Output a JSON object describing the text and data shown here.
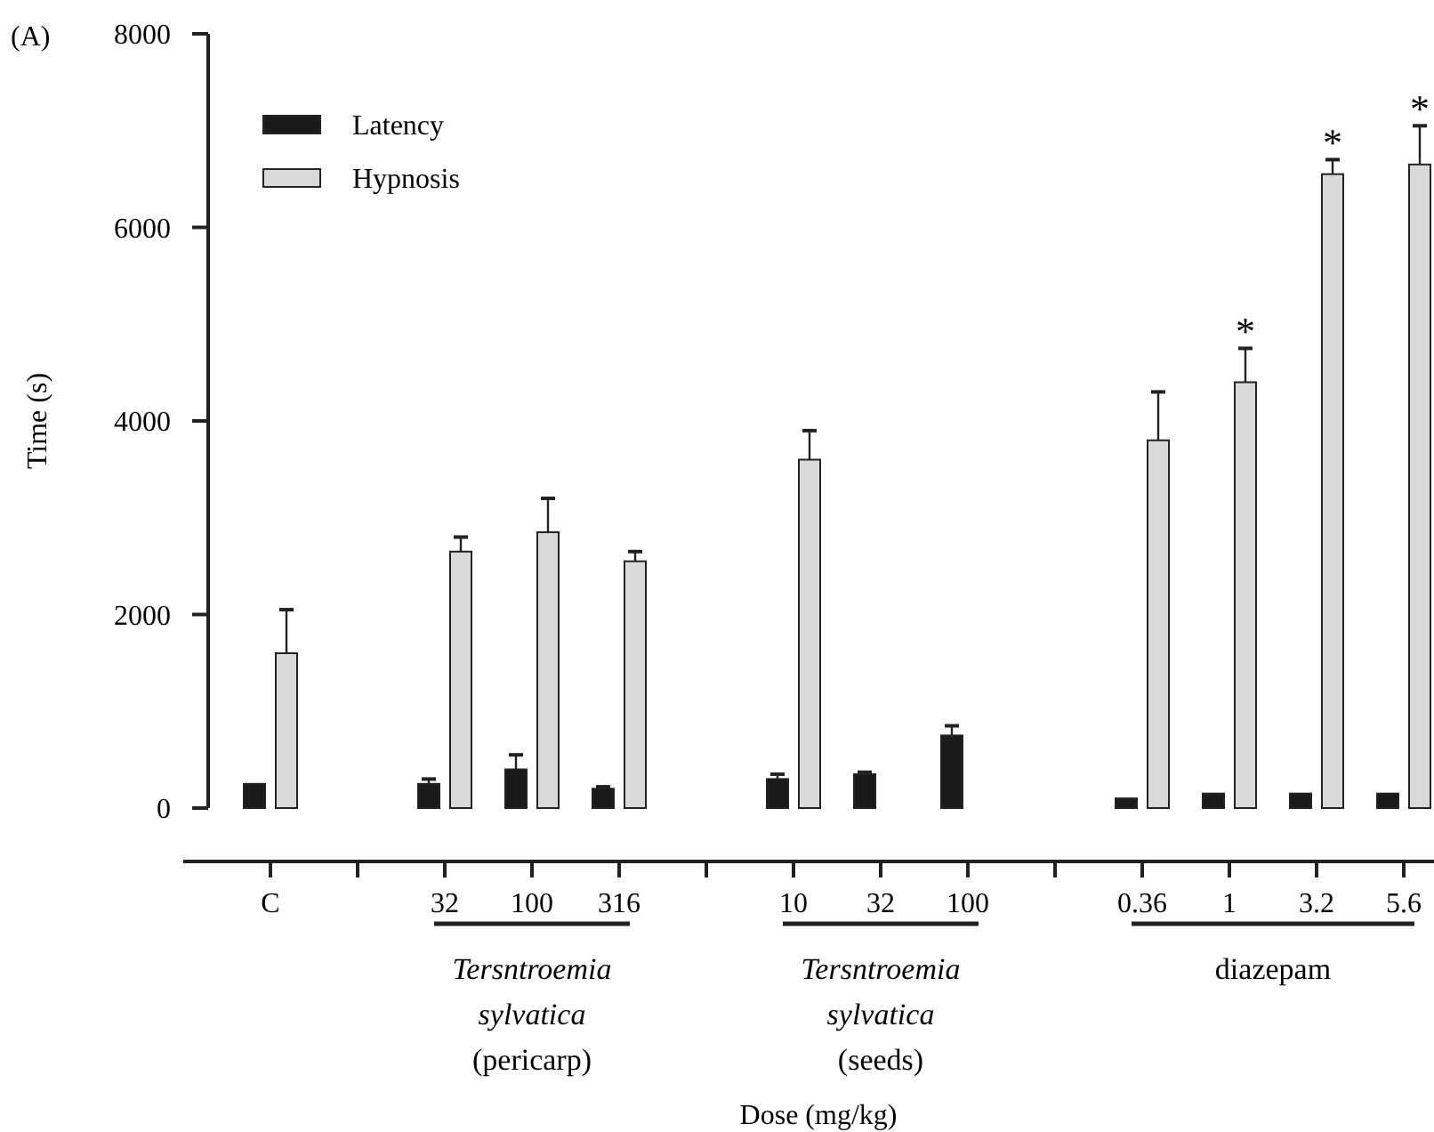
{
  "chart_data": {
    "type": "bar",
    "ylabel": "Time (s)",
    "categories": [
      "C",
      null,
      "32",
      "100",
      "316",
      null,
      "10",
      "32",
      "100",
      null,
      "0.36",
      "1",
      "3.2",
      "5.6"
    ],
    "series": [
      {
        "name": "Latency",
        "color": "#1a1a1a",
        "values": [
          250,
          null,
          250,
          400,
          200,
          null,
          300,
          350,
          750,
          null,
          100,
          150,
          150,
          150
        ],
        "errors": [
          null,
          null,
          50,
          150,
          20,
          null,
          50,
          20,
          100,
          null,
          null,
          null,
          null,
          null
        ]
      },
      {
        "name": "Hypnosis",
        "color": "#d9d9d9",
        "values": [
          1600,
          null,
          2650,
          2850,
          2550,
          null,
          3600,
          null,
          null,
          null,
          3800,
          4400,
          6550,
          6650
        ],
        "errors": [
          450,
          null,
          150,
          350,
          100,
          null,
          300,
          null,
          null,
          null,
          500,
          350,
          150,
          400
        ]
      }
    ],
    "ylim": [
      0,
      8000
    ],
    "yticks": [
      0,
      2000,
      4000,
      6000,
      8000
    ],
    "legend": "top left",
    "annotations": [
      "(A)",
      "Tersntroemia sylvatica (pericarp)",
      "Tersntroemia sylvatica (seeds)",
      "diazepam",
      "Dose (mg/kg)",
      {
        "text": "*",
        "x": "1",
        "y": 4400
      },
      {
        "text": "*",
        "x": "3.2",
        "y": 6550
      },
      {
        "text": "*",
        "x": "5.6",
        "y": 6650
      }
    ]
  }
}
